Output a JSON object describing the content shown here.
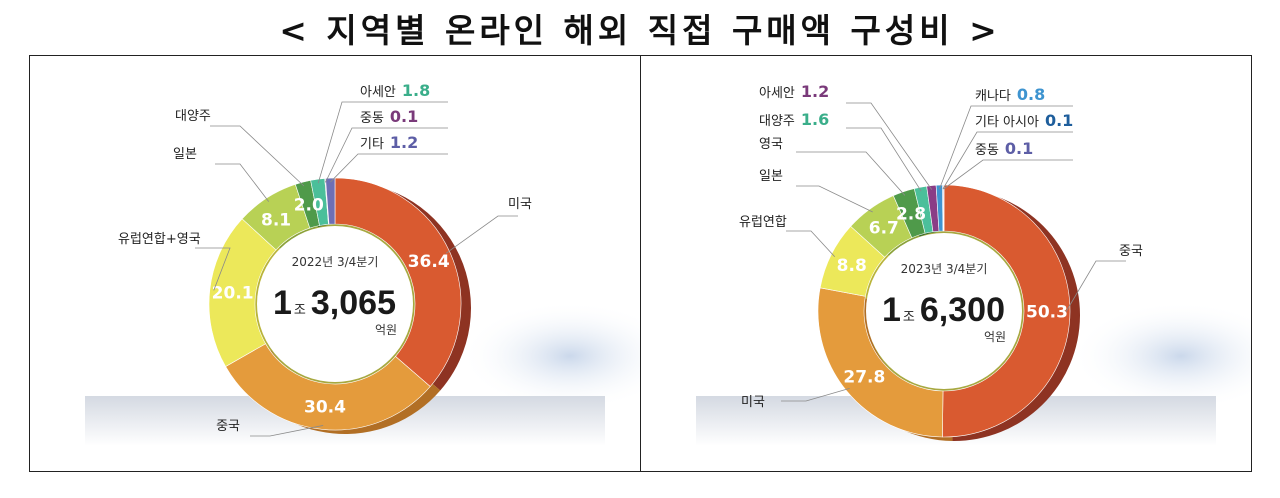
{
  "page": {
    "title": "< 지역별 온라인 해외 직접 구매액 구성비 >"
  },
  "chart_data": [
    {
      "type": "pie",
      "variant": "donut",
      "center_text": {
        "period": "2022년 3/4분기",
        "big_a": "1",
        "unit_a": "조",
        "big_b": "3,065",
        "unit_b": "억원"
      },
      "slices": [
        {
          "name": "미국",
          "value": 36.4,
          "color": "#d95a30",
          "shade": "#8e3322"
        },
        {
          "name": "중국",
          "value": 30.4,
          "color": "#e49b3c",
          "shade": "#b26f25"
        },
        {
          "name": "유럽연합+영국",
          "value": 20.1,
          "color": "#ece85a",
          "shade": "#b9b43a"
        },
        {
          "name": "일본",
          "value": 8.1,
          "color": "#b8d155",
          "shade": "#8ba23a"
        },
        {
          "name": "대양주",
          "value": 2.0,
          "color": "#4f9a4a",
          "shade": "#356d32"
        },
        {
          "name": "아세안",
          "value": 1.8,
          "color": "#4bbf9a",
          "shade": "#318f72"
        },
        {
          "name": "중동",
          "value": 0.1,
          "color": "#8a3d86",
          "shade": "#622b5f"
        },
        {
          "name": "기타",
          "value": 1.2,
          "color": "#6e6fb5",
          "shade": "#4d4e87"
        }
      ],
      "labels": [
        {
          "text": "미국",
          "inside": "36.4"
        },
        {
          "text": "중국",
          "inside": "30.4"
        },
        {
          "text": "유럽연합+영국",
          "inside": "20.1"
        },
        {
          "text": "일본",
          "inside": "8.1"
        },
        {
          "text": "대양주",
          "inside": "2.0"
        },
        {
          "text": "아세안",
          "value": "1.8",
          "value_color": "#3aae8a"
        },
        {
          "text": "중동",
          "value": "0.1",
          "value_color": "#7a3a7a"
        },
        {
          "text": "기타",
          "value": "1.2",
          "value_color": "#5d5ea6"
        }
      ]
    },
    {
      "type": "pie",
      "variant": "donut",
      "center_text": {
        "period": "2023년 3/4분기",
        "big_a": "1",
        "unit_a": "조",
        "big_b": "6,300",
        "unit_b": "억원"
      },
      "slices": [
        {
          "name": "중국",
          "value": 50.3,
          "color": "#d95a30",
          "shade": "#8e3322"
        },
        {
          "name": "미국",
          "value": 27.8,
          "color": "#e49b3c",
          "shade": "#b26f25"
        },
        {
          "name": "유럽연합",
          "value": 8.8,
          "color": "#ece85a",
          "shade": "#b9b43a"
        },
        {
          "name": "일본",
          "value": 6.7,
          "color": "#b8d155",
          "shade": "#8ba23a"
        },
        {
          "name": "영국",
          "value": 2.8,
          "color": "#4f9a4a",
          "shade": "#356d32"
        },
        {
          "name": "대양주",
          "value": 1.6,
          "color": "#4bbf9a",
          "shade": "#318f72"
        },
        {
          "name": "아세안",
          "value": 1.2,
          "color": "#8a3d86",
          "shade": "#622b5f"
        },
        {
          "name": "캐나다",
          "value": 0.8,
          "color": "#3e94d0",
          "shade": "#2a6a97"
        },
        {
          "name": "기타 아시아",
          "value": 0.1,
          "color": "#1e5e9c",
          "shade": "#154370"
        },
        {
          "name": "중동",
          "value": 0.1,
          "color": "#6e6fb5",
          "shade": "#4d4e87"
        }
      ],
      "labels": [
        {
          "text": "중국",
          "inside": "50.3"
        },
        {
          "text": "미국",
          "inside": "27.8"
        },
        {
          "text": "유럽연합",
          "inside": "8.8"
        },
        {
          "text": "일본",
          "inside": "6.7"
        },
        {
          "text": "영국",
          "inside": "2.8"
        },
        {
          "text": "대양주",
          "value": "1.6",
          "value_color": "#3aae8a"
        },
        {
          "text": "아세안",
          "value": "1.2",
          "value_color": "#7a3a7a"
        },
        {
          "text": "캐나다",
          "value": "0.8",
          "value_color": "#3e94d0"
        },
        {
          "text": "기타 아시아",
          "value": "0.1",
          "value_color": "#1e5e9c"
        },
        {
          "text": "중동",
          "value": "0.1",
          "value_color": "#5d5ea6"
        }
      ]
    }
  ]
}
